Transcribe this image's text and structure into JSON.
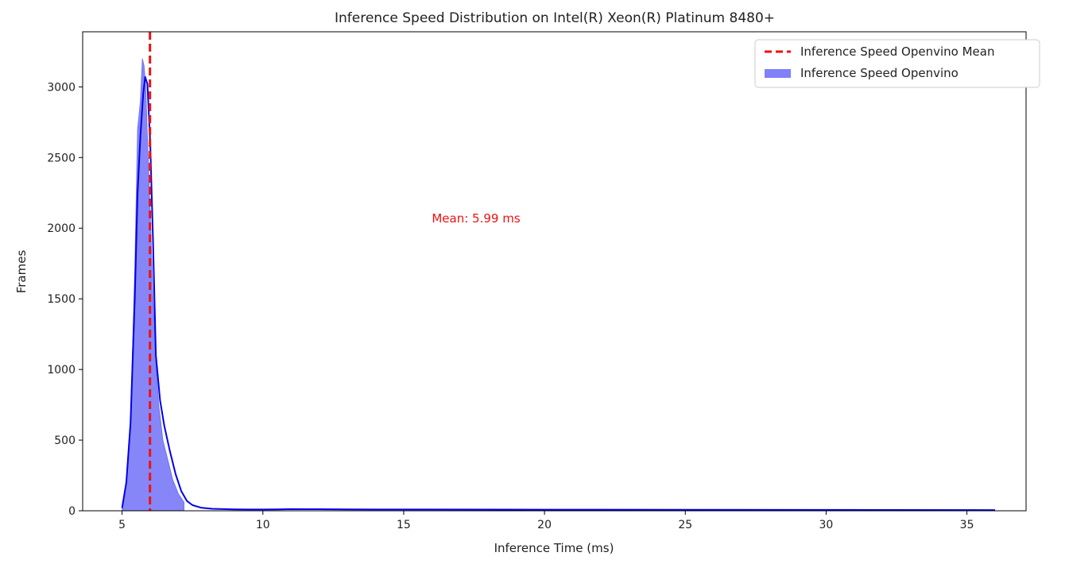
{
  "chart_data": {
    "type": "area",
    "title": "Inference Speed Distribution on Intel(R) Xeon(R) Platinum 8480+",
    "xlabel": "Inference Time (ms)",
    "ylabel": "Frames",
    "xlim": [
      3.6,
      37.1
    ],
    "ylim": [
      0,
      3390
    ],
    "x_ticks": [
      5,
      10,
      15,
      20,
      25,
      30,
      35
    ],
    "y_ticks": [
      0,
      500,
      1000,
      1500,
      2000,
      2500,
      3000
    ],
    "grid": false,
    "legend_position": "top-right",
    "legend": [
      {
        "label": "Inference Speed Openvino Mean",
        "kind": "dashed-line",
        "color": "#ee1111"
      },
      {
        "label": "Inference Speed Openvino",
        "kind": "filled-area",
        "color": "#8080f8"
      }
    ],
    "histogram": {
      "name": "Inference Speed Openvino",
      "color": "#8080f8",
      "x": [
        5.0,
        5.15,
        5.3,
        5.45,
        5.55,
        5.65,
        5.72,
        5.78,
        5.84,
        5.9,
        6.0,
        6.1,
        6.2,
        6.3,
        6.45,
        6.6,
        6.8,
        7.0,
        7.2
      ],
      "values": [
        30,
        200,
        650,
        1700,
        2700,
        2900,
        3200,
        3150,
        3000,
        2650,
        2100,
        1500,
        1050,
        750,
        500,
        380,
        220,
        120,
        60
      ]
    },
    "kde": {
      "name": "Inference Speed Openvino",
      "color": "#0000ee",
      "x": [
        5.0,
        5.15,
        5.3,
        5.45,
        5.55,
        5.65,
        5.75,
        5.82,
        5.9,
        6.0,
        6.1,
        6.2,
        6.35,
        6.5,
        6.7,
        6.9,
        7.1,
        7.3,
        7.5,
        7.8,
        8.2,
        8.6,
        9.0,
        9.5,
        10.0,
        10.5,
        11.0,
        12.0,
        13.0,
        14.0,
        16.0,
        20.0,
        25.0,
        30.0,
        36.0
      ],
      "values": [
        20,
        200,
        620,
        1500,
        2250,
        2650,
        2950,
        3070,
        3020,
        2600,
        1900,
        1100,
        780,
        600,
        420,
        260,
        140,
        70,
        40,
        22,
        14,
        12,
        10,
        9,
        9,
        10,
        12,
        11,
        10,
        9,
        9,
        8,
        7,
        6,
        5
      ]
    },
    "mean": {
      "name": "Inference Speed Openvino Mean",
      "value": 5.99,
      "color": "#ee1111",
      "annotation": "Mean: 5.99 ms",
      "annotation_x": 16.0,
      "annotation_y": 2040
    }
  }
}
